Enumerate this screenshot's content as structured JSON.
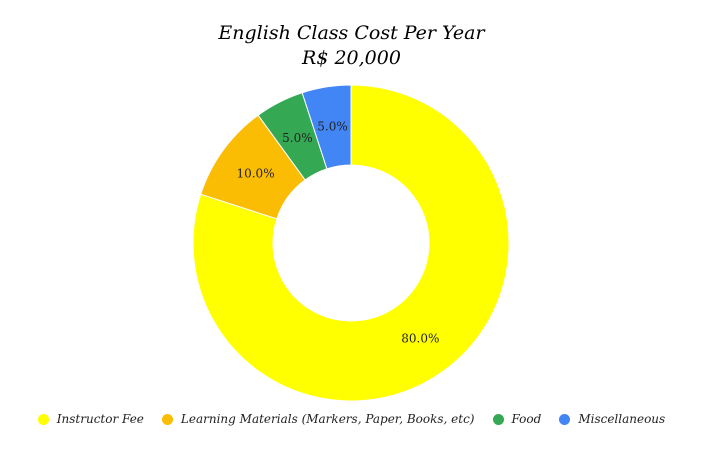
{
  "chart_data": {
    "type": "pie",
    "donut": true,
    "title": "English Class Cost Per Year",
    "subtitle": "R$ 20,000",
    "categories": [
      "Instructor Fee",
      "Learning Materials (Markers, Paper, Books, etc)",
      "Food",
      "Miscellaneous"
    ],
    "values": [
      80.0,
      10.0,
      5.0,
      5.0
    ],
    "data_labels": [
      "80.0%",
      "10.0%",
      "5.0%",
      "5.0%"
    ],
    "colors": [
      "#ffff00",
      "#fbbc04",
      "#34a853",
      "#4285f4"
    ],
    "legend_position": "bottom"
  }
}
